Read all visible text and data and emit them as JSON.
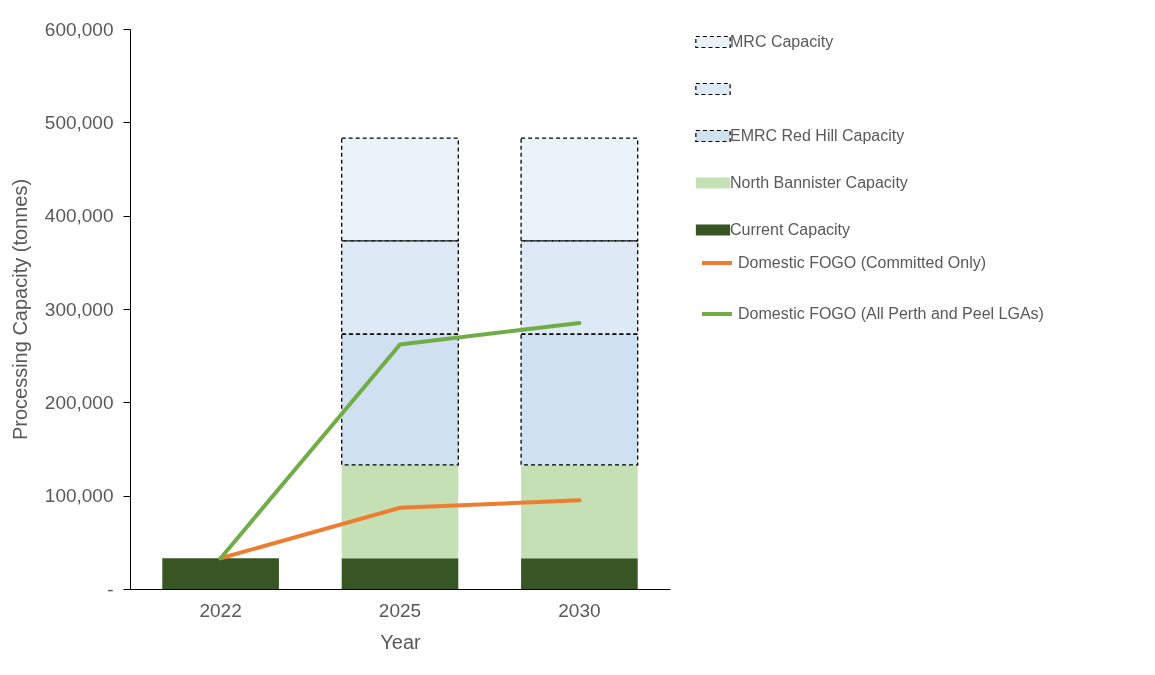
{
  "chart_data": {
    "type": "bar",
    "stacked": true,
    "xlabel": "Year",
    "ylabel": "Processing Capacity (tonnes)",
    "categories": [
      "2022",
      "2025",
      "2030"
    ],
    "ylim": [
      0,
      600000
    ],
    "yticks": [
      {
        "value": 0,
        "label": "-"
      },
      {
        "value": 100000,
        "label": "100,000"
      },
      {
        "value": 200000,
        "label": "200,000"
      },
      {
        "value": 300000,
        "label": "300,000"
      },
      {
        "value": 400000,
        "label": "400,000"
      },
      {
        "value": 500000,
        "label": "500,000"
      },
      {
        "value": 600000,
        "label": "600,000"
      }
    ],
    "grid": false,
    "legend": "right",
    "series": [
      {
        "name": "Current Capacity",
        "color": "#375623",
        "values": [
          33000,
          33000,
          33000
        ]
      },
      {
        "name": "North Bannister Capacity",
        "color": "#c5e0b4",
        "values": [
          null,
          100000,
          100000
        ]
      },
      {
        "name": "EMRC Red Hill Capacity",
        "color": "#cfe0f0",
        "values": [
          null,
          140000,
          140000
        ],
        "line_style": "dashed"
      },
      {
        "color": "#dde9f5",
        "values": [
          null,
          100000,
          100000
        ],
        "line_style": "dashed"
      },
      {
        "name": "MRC Capacity",
        "color": "#eaf2fa",
        "values": [
          null,
          110000,
          110000
        ],
        "line_style": "dashed"
      },
      {
        "type": "line",
        "name": "Domestic FOGO (Committed Only)",
        "color": "#ed7d31",
        "values": [
          33000,
          87000,
          95000
        ]
      },
      {
        "type": "line",
        "name": "Domestic FOGO (All Perth and Peel LGAs)",
        "color": "#70ad47",
        "values": [
          33000,
          262000,
          285000
        ]
      }
    ]
  }
}
